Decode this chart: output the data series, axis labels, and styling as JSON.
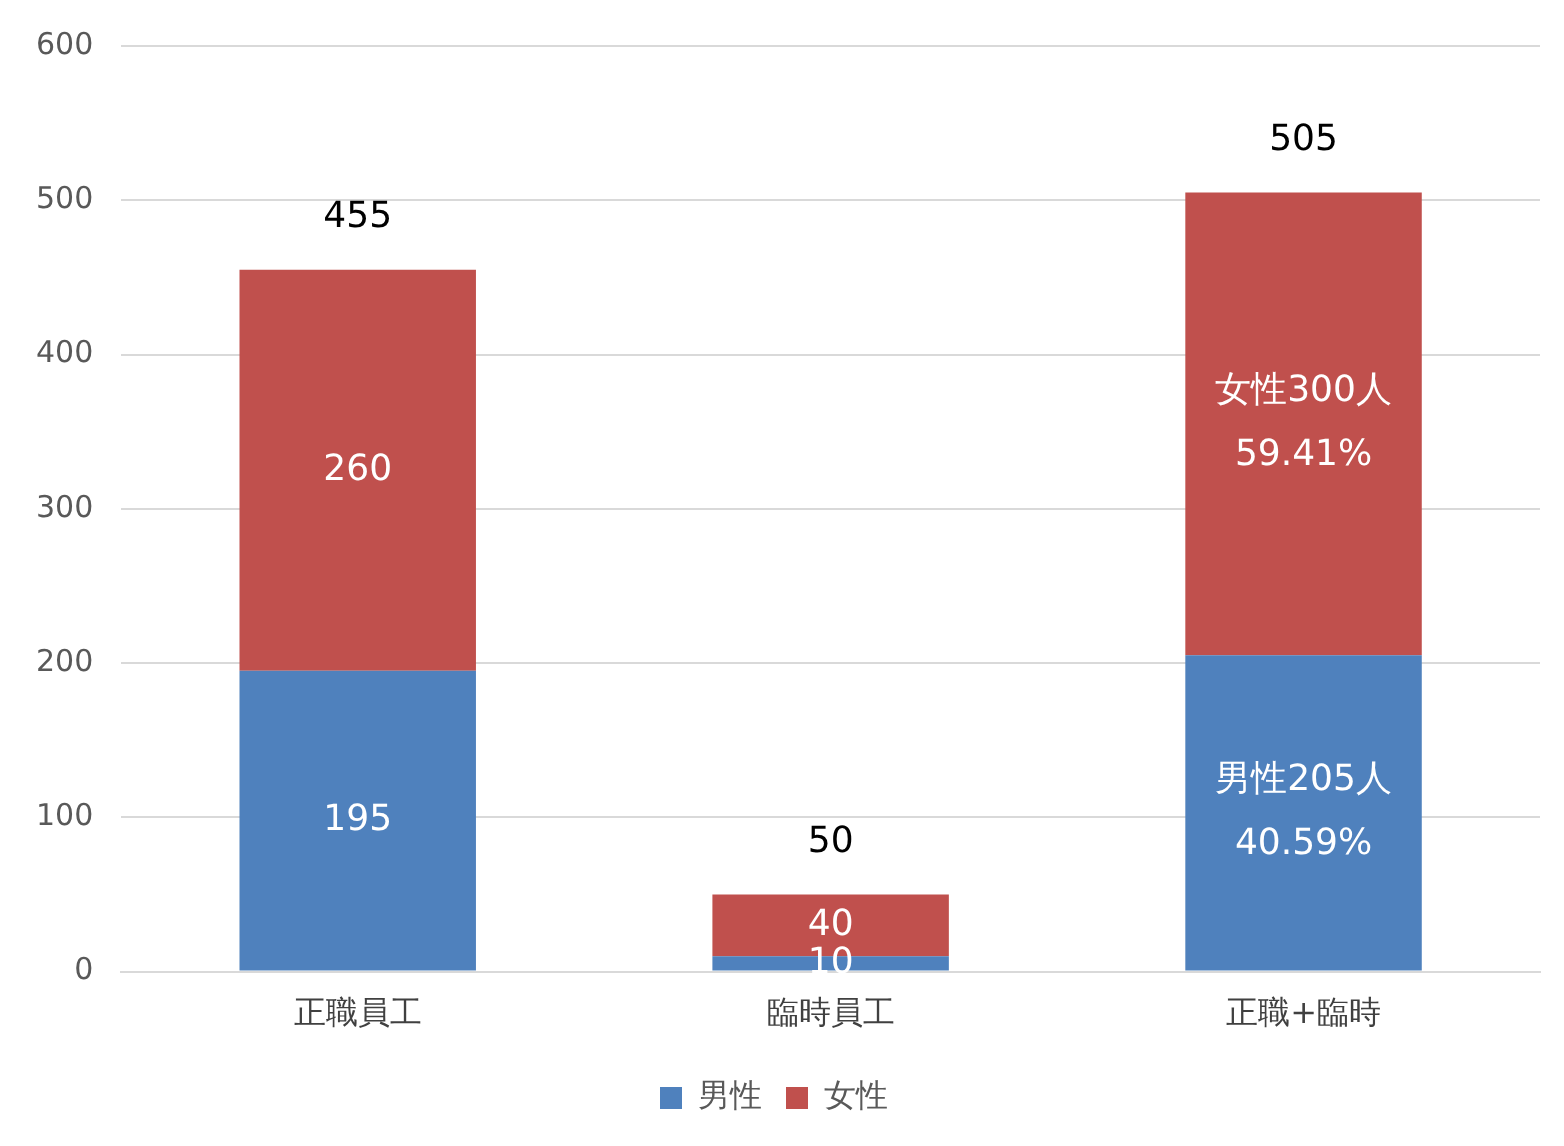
{
  "chart_data": {
    "type": "bar",
    "stacked": true,
    "categories": [
      "正職員工",
      "臨時員工",
      "正職+臨時"
    ],
    "series": [
      {
        "name": "男性",
        "color": "#4f81bd",
        "values": [
          195,
          10,
          205
        ],
        "value_labels": [
          "195",
          "10",
          "男性205人\n40.59%"
        ]
      },
      {
        "name": "女性",
        "color": "#c0504d",
        "values": [
          260,
          40,
          300
        ],
        "value_labels": [
          "260",
          "40",
          "女性300人\n59.41%"
        ]
      }
    ],
    "totals": [
      "455",
      "50",
      "505"
    ],
    "ylim": [
      0,
      600
    ],
    "yticks": [
      0,
      100,
      200,
      300,
      400,
      500,
      600
    ],
    "grid": "y",
    "legend": "bottom"
  }
}
